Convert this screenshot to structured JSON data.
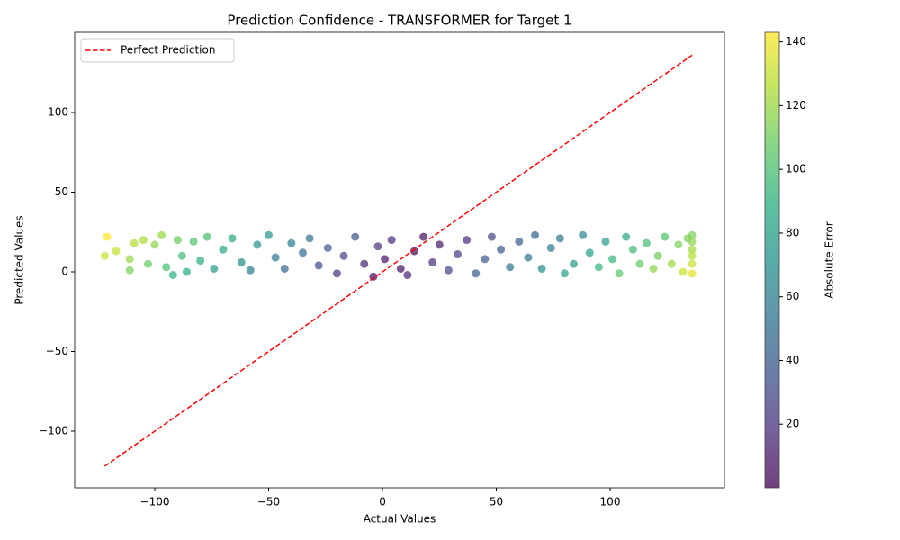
{
  "chart_data": {
    "type": "scatter",
    "title": "Prediction Confidence - TRANSFORMER for Target 1",
    "xlabel": "Actual Values",
    "ylabel": "Predicted Values",
    "xlim": [
      -135.2,
      150.2
    ],
    "ylim": [
      -135.6,
      150.3
    ],
    "xticks": [
      {
        "value": -100,
        "label": "−100"
      },
      {
        "value": -50,
        "label": "−50"
      },
      0,
      50,
      100
    ],
    "yticks": [
      {
        "value": -100,
        "label": "−100"
      },
      {
        "value": -50,
        "label": "−50"
      },
      0,
      50,
      100
    ],
    "points": {
      "x": [
        -122,
        -121,
        -117,
        -111,
        -111,
        -109,
        -105,
        -103,
        -100,
        -97,
        -95,
        -92,
        -90,
        -88,
        -86,
        -83,
        -80,
        -77,
        -74,
        -70,
        -66,
        -62,
        -58,
        -55,
        -50,
        -47,
        -43,
        -40,
        -35,
        -32,
        -28,
        -24,
        -20,
        -17,
        -12,
        -8,
        -4,
        -2,
        1,
        4,
        8,
        11,
        14,
        18,
        22,
        25,
        29,
        33,
        37,
        41,
        45,
        48,
        52,
        56,
        60,
        64,
        67,
        70,
        74,
        78,
        80,
        84,
        88,
        91,
        95,
        98,
        101,
        104,
        107,
        110,
        113,
        116,
        119,
        121,
        124,
        127,
        130,
        132,
        134,
        136,
        136,
        136,
        136,
        136,
        136
      ],
      "values": [
        10,
        22,
        13,
        8,
        1,
        18,
        20,
        5,
        17,
        23,
        3,
        -2,
        20,
        10,
        0,
        19,
        7,
        22,
        2,
        14,
        21,
        6,
        1,
        17,
        23,
        9,
        2,
        18,
        12,
        21,
        4,
        15,
        -1,
        10,
        22,
        5,
        -3,
        16,
        8,
        20,
        2,
        -2,
        13,
        22,
        6,
        17,
        1,
        11,
        20,
        -1,
        8,
        22,
        14,
        3,
        19,
        9,
        23,
        2,
        15,
        21,
        -1,
        5,
        23,
        12,
        3,
        19,
        8,
        -1,
        22,
        14,
        5,
        18,
        2,
        10,
        22,
        5,
        17,
        0,
        21,
        23,
        14,
        5,
        -1,
        10,
        19
      ],
      "error": [
        132,
        143,
        130,
        119,
        112,
        127,
        125,
        108,
        117,
        120,
        98,
        90,
        110,
        98,
        86,
        102,
        87,
        99,
        76,
        84,
        87,
        68,
        59,
        72,
        73,
        56,
        45,
        58,
        47,
        53,
        32,
        39,
        19,
        27,
        34,
        13,
        1,
        18,
        7,
        16,
        6,
        13,
        1,
        4,
        16,
        8,
        28,
        22,
        17,
        42,
        37,
        26,
        38,
        53,
        41,
        55,
        44,
        68,
        59,
        57,
        81,
        79,
        65,
        79,
        92,
        79,
        93,
        105,
        85,
        96,
        108,
        98,
        117,
        111,
        102,
        122,
        113,
        132,
        113,
        113,
        122,
        131,
        137,
        126,
        117
      ]
    },
    "line": {
      "name": "Perfect Prediction",
      "color": "#ff0000",
      "x": [
        -122,
        136
      ],
      "values": [
        -122,
        136
      ]
    },
    "legend": "upper left",
    "colorbar": {
      "label": "Absolute Error",
      "colormap": "viridis",
      "lim": [
        0,
        143
      ],
      "ticks": [
        20,
        40,
        60,
        80,
        100,
        120,
        140
      ]
    }
  }
}
